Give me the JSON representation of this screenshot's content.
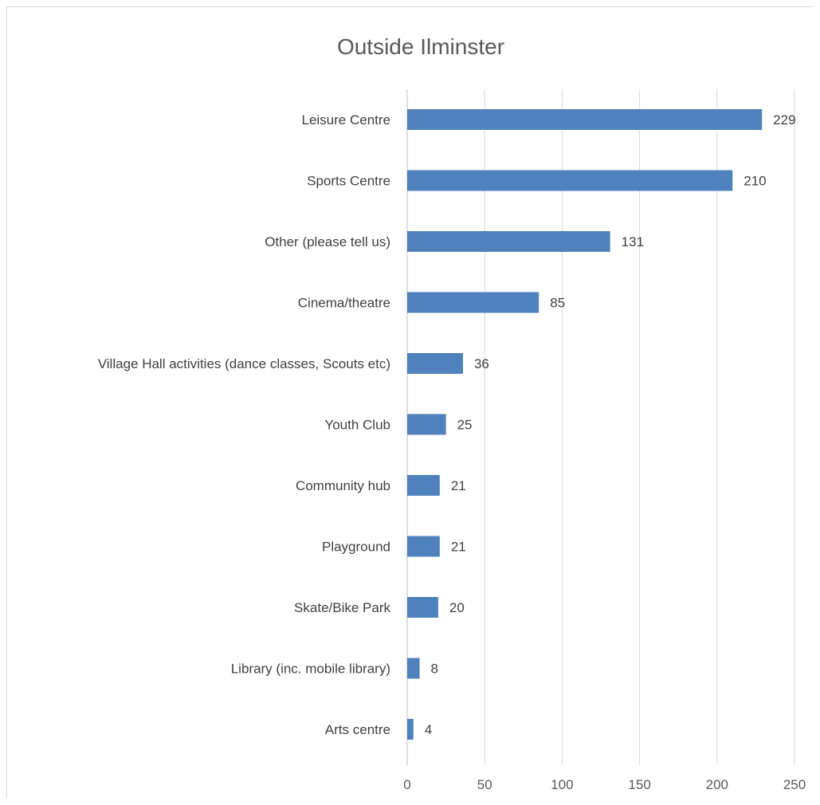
{
  "chart_data": {
    "type": "bar",
    "orientation": "horizontal",
    "title": "Outside Ilminster",
    "categories": [
      "Leisure Centre",
      "Sports Centre",
      "Other (please tell us)",
      "Cinema/theatre",
      "Village Hall activities (dance classes, Scouts etc)",
      "Youth Club",
      "Community hub",
      "Playground",
      "Skate/Bike Park",
      "Library (inc. mobile library)",
      "Arts centre"
    ],
    "values": [
      229,
      210,
      131,
      85,
      36,
      25,
      21,
      21,
      20,
      8,
      4
    ],
    "xlim": [
      0,
      250
    ],
    "x_ticks": [
      0,
      50,
      100,
      150,
      200,
      250
    ],
    "xlabel": "",
    "ylabel": "",
    "grid": true,
    "legend": "none",
    "bar_color": "#4f81bd"
  }
}
